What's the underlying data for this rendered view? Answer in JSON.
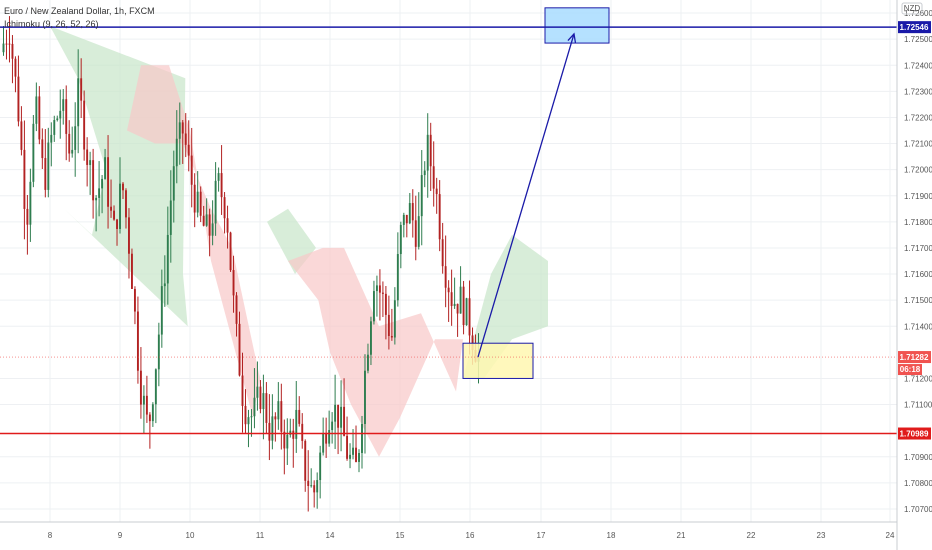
{
  "header": {
    "symbol_title": "Euro / New Zealand Dollar, 1h, FXCM",
    "indicator": "Ichimoku (9, 26, 52, 26)",
    "currency": "NZD"
  },
  "chart_data": {
    "type": "candlestick",
    "title": "Euro / New Zealand Dollar, 1h, FXCM",
    "ylim": [
      1.7065,
      1.7265
    ],
    "y_ticks": [
      "1.72600",
      "1.72500",
      "1.72400",
      "1.72300",
      "1.72200",
      "1.72100",
      "1.72000",
      "1.71900",
      "1.71800",
      "1.71700",
      "1.71600",
      "1.71500",
      "1.71400",
      "1.71200",
      "1.71100",
      "1.70900",
      "1.70800",
      "1.70700"
    ],
    "x_ticks": [
      "8",
      "9",
      "10",
      "11",
      "14",
      "15",
      "16",
      "17",
      "18",
      "21",
      "22",
      "23",
      "24"
    ],
    "grid": true,
    "price_path": [
      1.7245,
      1.7255,
      1.7225,
      1.718,
      1.7225,
      1.7195,
      1.7215,
      1.7225,
      1.7205,
      1.723,
      1.7205,
      1.719,
      1.72,
      1.7175,
      1.7195,
      1.7165,
      1.712,
      1.71,
      1.713,
      1.7165,
      1.7205,
      1.7215,
      1.7195,
      1.718,
      1.7175,
      1.7195,
      1.7185,
      1.714,
      1.711,
      1.7105,
      1.7115,
      1.71,
      1.7105,
      1.7095,
      1.7105,
      1.7085,
      1.7075,
      1.7095,
      1.711,
      1.7105,
      1.709,
      1.7085,
      1.7125,
      1.716,
      1.715,
      1.7135,
      1.7175,
      1.7185,
      1.7175,
      1.721,
      1.7195,
      1.7165,
      1.715,
      1.715,
      1.714,
      1.7128
    ],
    "levels": [
      {
        "price": 1.72546,
        "label": "1.72546",
        "color": "#1a1aa8"
      },
      {
        "price": 1.70989,
        "label": "1.70989",
        "color": "#e01b1b"
      }
    ],
    "current_price": {
      "label": "1.71282",
      "countdown": "06:18",
      "color": "#f05350"
    },
    "target_zone": {
      "price_low": 1.72485,
      "price_high": 1.7262,
      "from_day": 16.0,
      "to_day": 17.0,
      "color": "#a8dcff"
    },
    "entry_zone": {
      "price_low": 1.712,
      "price_high": 1.71335,
      "from_day": 16.0,
      "to_day": 17.0,
      "color": "#fff7b0"
    },
    "projection_arrow": {
      "from": [
        16.0,
        1.71282
      ],
      "to": [
        16.9,
        1.7252
      ],
      "color": "#1a1aa8"
    },
    "colors": {
      "up": "#2e7d4f",
      "down": "#b22222",
      "cloud_bull": "#c8e6c9",
      "cloud_bear": "#f8c8c8"
    }
  }
}
